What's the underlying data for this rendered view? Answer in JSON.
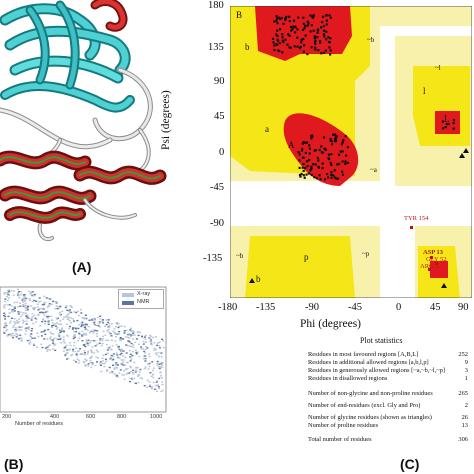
{
  "panel_a": {
    "label": "(A)"
  },
  "panel_b": {
    "label": "(B)",
    "legend": [
      "X-ray",
      "NMR"
    ],
    "x_ticks": [
      "200",
      "400",
      "600",
      "800",
      "1000"
    ],
    "x_label": "Number of residues",
    "colors": {
      "xray": "#b9c5d8",
      "nmr": "#5d76a0"
    }
  },
  "panel_c": {
    "label": "(C)",
    "x_label": "Phi (degrees)",
    "y_label": "Psi (degrees)",
    "x_ticks": [
      "-180",
      "-135",
      "-90",
      "-45",
      "0",
      "45",
      "90"
    ],
    "y_ticks": [
      "180",
      "135",
      "90",
      "45",
      "0",
      "-45",
      "-90",
      "-135"
    ],
    "region_labels": [
      "B",
      "b",
      "~b",
      "a",
      "A",
      "~a",
      "l",
      "L",
      "~l",
      "p",
      "~p",
      "b",
      "~b"
    ],
    "outliers": [
      "TYR 154",
      "ASP 13",
      "GLY 52",
      "ARG 2"
    ],
    "colors": {
      "core": "#e0191e",
      "allowed": "#f5e617",
      "generous": "#f7f1ac",
      "disallowed": "#ffffff"
    },
    "statistics": {
      "title": "Plot statistics",
      "rows": [
        {
          "label": "Residues in most favoured regions  [A,B,L]",
          "value": "252"
        },
        {
          "label": "Residues in additional allowed regions  [a,b,l,p]",
          "value": "9"
        },
        {
          "label": "Residues in generously allowed regions  [~a,~b,~l,~p]",
          "value": "3"
        },
        {
          "label": "Residues in disallowed regions",
          "value": "1"
        },
        {
          "label": "Number of non-glycine and non-proline residues",
          "value": "265"
        },
        {
          "label": "Number of end-residues (excl. Gly and Pro)",
          "value": "2"
        },
        {
          "label": "Number of glycine residues (shown as triangles)",
          "value": "26"
        },
        {
          "label": "Number of proline residues",
          "value": "13"
        },
        {
          "label": "Total number of residues",
          "value": "306"
        }
      ]
    }
  }
}
